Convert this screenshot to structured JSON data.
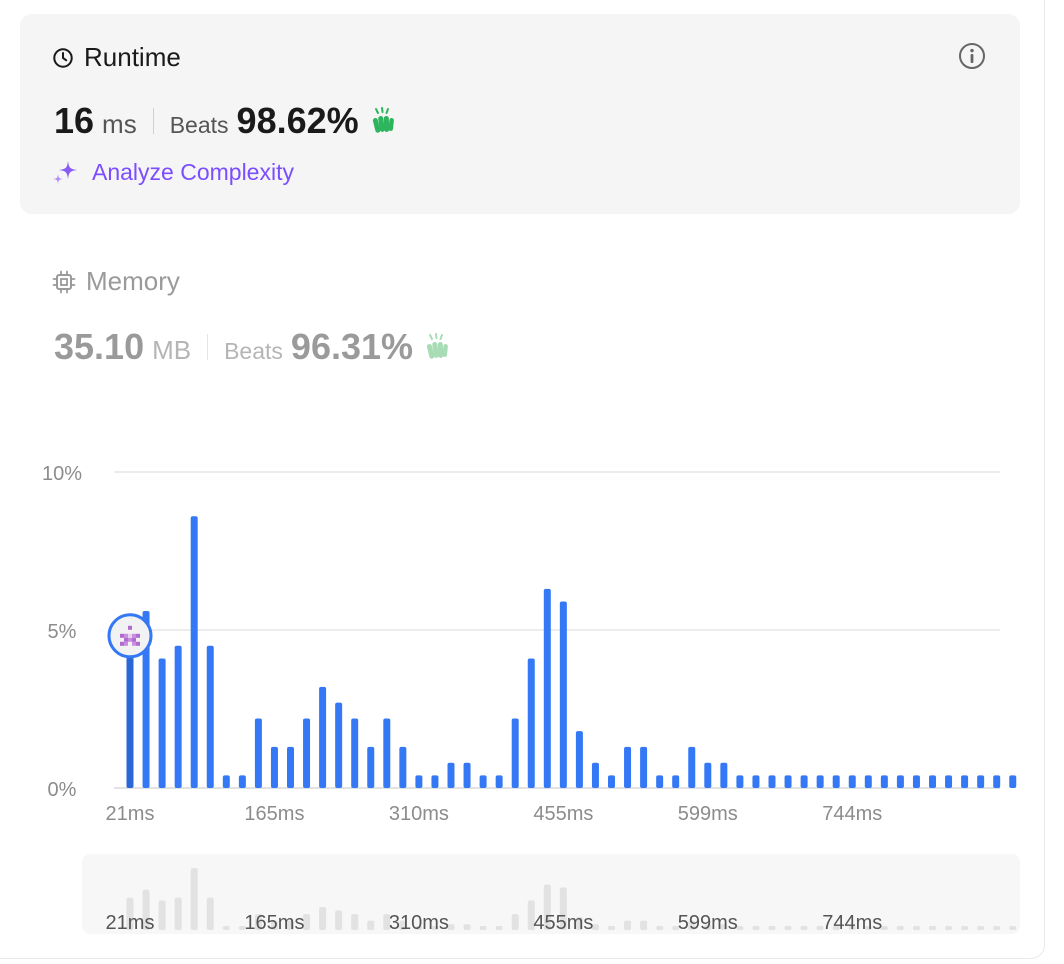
{
  "runtime": {
    "title": "Runtime",
    "value": "16",
    "unit": "ms",
    "beats_label": "Beats",
    "beats_value": "98.62%",
    "analyze_label": "Analyze Complexity",
    "title_icon": "clock-icon",
    "info_icon": "info-icon",
    "badge_icon": "clap-icon",
    "analyze_icon": "sparkle-icon"
  },
  "memory": {
    "title": "Memory",
    "value": "35.10",
    "unit": "MB",
    "beats_label": "Beats",
    "beats_value": "96.31%",
    "title_icon": "chip-icon",
    "badge_icon": "clap-icon"
  },
  "colors": {
    "bar": "#3478f6",
    "clap_active": "#2db55d",
    "clap_inactive": "#a8dcb5",
    "accent_purple": "#7c4dff",
    "navigator_bar": "#e2e2e2"
  },
  "chart_data": {
    "type": "bar",
    "ylim": [
      0,
      10
    ],
    "y_ticks": [
      "0%",
      "5%",
      "10%"
    ],
    "y_tick_values": [
      0,
      5,
      10
    ],
    "x_tick_labels": [
      "21ms",
      "165ms",
      "310ms",
      "455ms",
      "599ms",
      "744ms"
    ],
    "x_tick_indices": [
      0,
      9,
      18,
      27,
      36,
      45
    ],
    "grid": true,
    "highlight_index": 0,
    "marker_icon": "user-avatar-icon",
    "values": [
      4.5,
      5.6,
      4.1,
      4.5,
      8.6,
      4.5,
      0.4,
      0.4,
      2.2,
      1.3,
      1.3,
      2.2,
      3.2,
      2.7,
      2.2,
      1.3,
      2.2,
      1.3,
      0.4,
      0.4,
      0.8,
      0.8,
      0.4,
      0.4,
      2.2,
      4.1,
      6.3,
      5.9,
      1.8,
      0.8,
      0.4,
      1.3,
      1.3,
      0.4,
      0.4,
      1.3,
      0.8,
      0.8,
      0.4,
      0.4,
      0.4,
      0.4,
      0.4,
      0.4,
      0.4,
      0.4,
      0.4,
      0.4,
      0.4,
      0.4,
      0.4,
      0.4,
      0.4,
      0.4,
      0.4,
      0.4
    ]
  }
}
